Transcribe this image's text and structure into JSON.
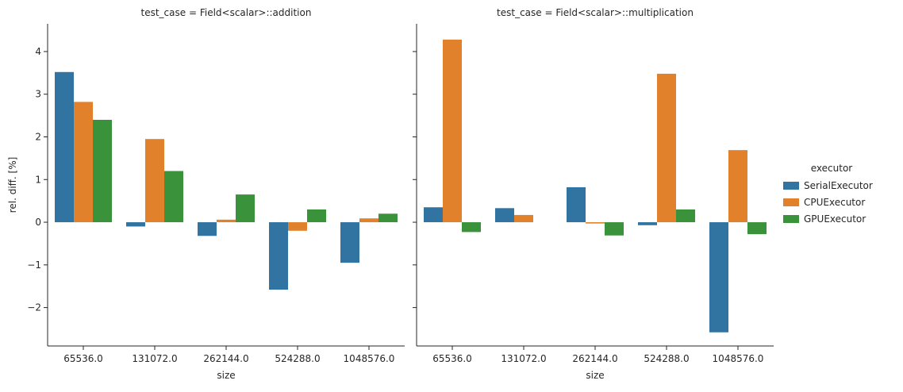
{
  "colors": {
    "SerialExecutor": "#3274a1",
    "CPUExecutor": "#e1812c",
    "GPUExecutor": "#3a923a"
  },
  "legend": {
    "title": "executor",
    "entries": [
      "SerialExecutor",
      "CPUExecutor",
      "GPUExecutor"
    ],
    "placement": "right"
  },
  "shared": {
    "xlabel": "size",
    "ylabel": "rel. diff. [%]",
    "ylim": [
      -2.9,
      4.65
    ],
    "yticks": [
      -2,
      -1,
      0,
      1,
      2,
      3,
      4
    ],
    "ytick_labels": [
      "−2",
      "−1",
      "0",
      "1",
      "2",
      "3",
      "4"
    ]
  },
  "chart_data": [
    {
      "type": "bar",
      "title": "test_case = Field<scalar>::addition",
      "xlabel": "size",
      "ylabel": "rel. diff. [%]",
      "categories": [
        "65536.0",
        "131072.0",
        "262144.0",
        "524288.0",
        "1048576.0"
      ],
      "series": [
        {
          "name": "SerialExecutor",
          "values": [
            3.52,
            -0.1,
            -0.32,
            -1.58,
            -0.95
          ]
        },
        {
          "name": "CPUExecutor",
          "values": [
            2.82,
            1.95,
            0.06,
            -0.2,
            0.09
          ]
        },
        {
          "name": "GPUExecutor",
          "values": [
            2.4,
            1.2,
            0.65,
            0.3,
            0.2
          ]
        }
      ],
      "ylim": [
        -2.9,
        4.65
      ]
    },
    {
      "type": "bar",
      "title": "test_case = Field<scalar>::multiplication",
      "xlabel": "size",
      "categories": [
        "65536.0",
        "131072.0",
        "262144.0",
        "524288.0",
        "1048576.0"
      ],
      "series": [
        {
          "name": "SerialExecutor",
          "values": [
            0.35,
            0.33,
            0.82,
            -0.07,
            -2.58
          ]
        },
        {
          "name": "CPUExecutor",
          "values": [
            4.28,
            0.17,
            -0.03,
            3.48,
            1.69
          ]
        },
        {
          "name": "GPUExecutor",
          "values": [
            -0.23,
            0.0,
            -0.31,
            0.3,
            -0.28
          ]
        }
      ],
      "ylim": [
        -2.9,
        4.65
      ]
    }
  ]
}
